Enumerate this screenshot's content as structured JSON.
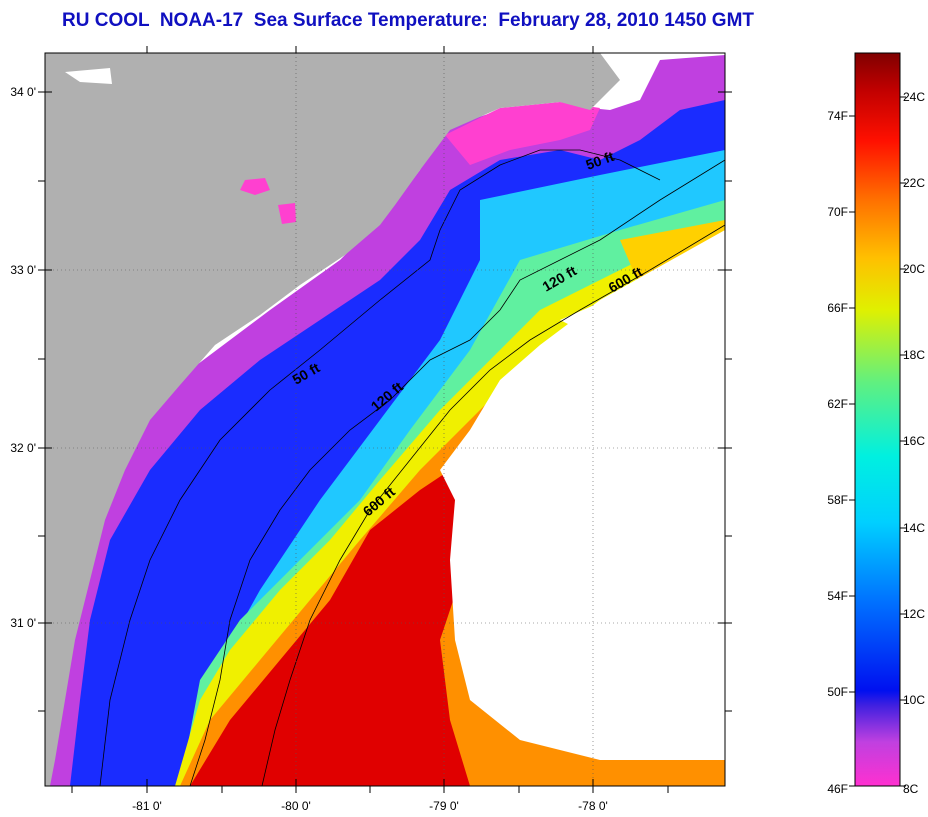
{
  "title": "RU COOL  NOAA-17  Sea Surface Temperature:  February 28, 2010 1450 GMT",
  "map": {
    "lon_ticks": [
      {
        "label": "-81 0'",
        "lon": -81
      },
      {
        "label": "-80 0'",
        "lon": -80
      },
      {
        "label": "-79 0'",
        "lon": -79
      },
      {
        "label": "-78 0'",
        "lon": -78
      }
    ],
    "lat_ticks": [
      {
        "label": "34 0'",
        "lat": 34
      },
      {
        "label": "33 0'",
        "lat": 33
      },
      {
        "label": "32 0'",
        "lat": 32
      },
      {
        "label": "31 0'",
        "lat": 31
      }
    ],
    "isobath_labels": [
      "50 ft",
      "120 ft",
      "600 ft",
      "50 ft",
      "120 ft",
      "600 ft"
    ],
    "colors": {
      "land": "#b0b0b0",
      "cloud": "#ffffff",
      "frame": "#000000"
    }
  },
  "colorbar": {
    "fahrenheit_labels": [
      "74F",
      "70F",
      "66F",
      "62F",
      "58F",
      "54F",
      "50F",
      "46F"
    ],
    "celsius_labels": [
      "24C",
      "22C",
      "20C",
      "18C",
      "16C",
      "14C",
      "12C",
      "10C",
      "8C"
    ],
    "range_c": [
      8,
      25
    ],
    "stops": [
      "#ff30d0",
      "#b040e0",
      "#0010f0",
      "#0060ff",
      "#00c0ff",
      "#00f0f0",
      "#40f0a0",
      "#a0f040",
      "#f0f000",
      "#ffc000",
      "#ff7000",
      "#ff2000",
      "#d00000",
      "#800000"
    ]
  }
}
